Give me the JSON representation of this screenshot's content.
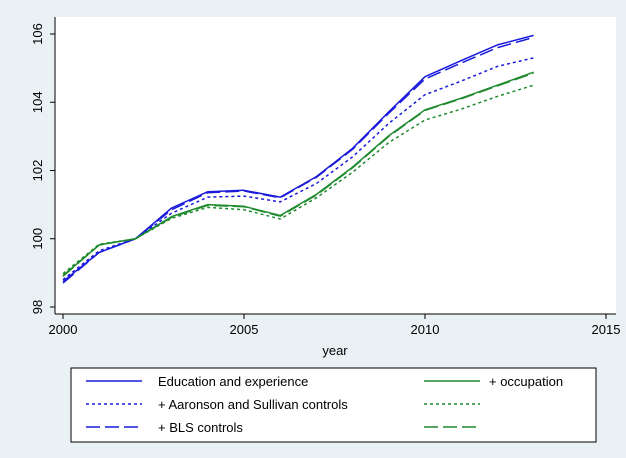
{
  "chart_data": {
    "type": "line",
    "title": "",
    "xlabel": "year",
    "ylabel": "",
    "xlim": [
      2000,
      2015
    ],
    "ylim": [
      98,
      106
    ],
    "xticks": [
      2000,
      2005,
      2010,
      2015
    ],
    "yticks": [
      98,
      100,
      102,
      104,
      106
    ],
    "grid": "none",
    "legend_position": "bottom",
    "x": [
      2000,
      2001,
      2002,
      2003,
      2004,
      2005,
      2006,
      2007,
      2008,
      2009,
      2010,
      2011,
      2012,
      2013
    ],
    "series": [
      {
        "name": "Education and experience",
        "color": "#1a1adb",
        "dash": "solid",
        "values": [
          98.75,
          99.6,
          100.0,
          100.9,
          101.38,
          101.42,
          101.22,
          101.82,
          102.65,
          103.72,
          104.75,
          105.22,
          105.68,
          105.96
        ]
      },
      {
        "name": "+ Aaronson and Sullivan controls",
        "color": "#1a1adb",
        "dash": "dotted",
        "values": [
          98.8,
          99.65,
          100.0,
          100.75,
          101.22,
          101.25,
          101.08,
          101.62,
          102.4,
          103.38,
          104.22,
          104.62,
          105.05,
          105.3
        ]
      },
      {
        "name": "+ BLS controls",
        "color": "#1a1adb",
        "dash": "longdash",
        "values": [
          98.7,
          99.6,
          100.0,
          100.85,
          101.35,
          101.4,
          101.2,
          101.8,
          102.62,
          103.68,
          104.68,
          105.15,
          105.6,
          105.9
        ]
      },
      {
        "name": "+ occupation",
        "color": "#1f8a2e",
        "dash": "solid",
        "values": [
          98.92,
          99.82,
          100.0,
          100.65,
          101.0,
          100.95,
          100.68,
          101.3,
          102.1,
          103.02,
          103.78,
          104.12,
          104.5,
          104.88
        ]
      },
      {
        "name": "",
        "color": "#1f8a2e",
        "dash": "dotted",
        "values": [
          98.98,
          99.84,
          100.0,
          100.6,
          100.92,
          100.85,
          100.58,
          101.2,
          101.95,
          102.82,
          103.48,
          103.8,
          104.17,
          104.5
        ]
      },
      {
        "name": "",
        "color": "#1f8a2e",
        "dash": "longdash",
        "values": [
          98.9,
          99.82,
          100.0,
          100.63,
          100.98,
          100.94,
          100.66,
          101.28,
          102.08,
          103.0,
          103.76,
          104.1,
          104.48,
          104.85
        ]
      }
    ]
  }
}
